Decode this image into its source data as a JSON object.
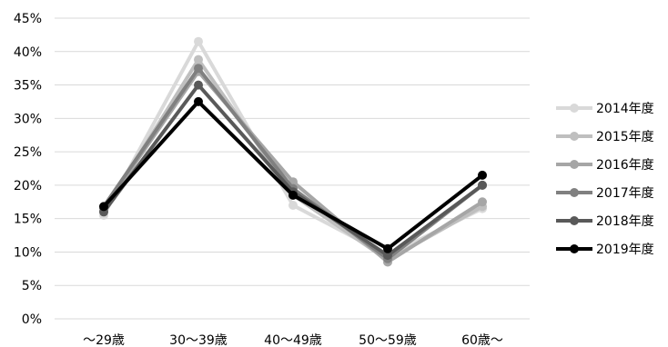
{
  "chart_data": {
    "type": "line",
    "title": "",
    "xlabel": "",
    "ylabel": "",
    "categories": [
      "～29歳",
      "30～39歳",
      "40～49歳",
      "50～59歳",
      "60歳～"
    ],
    "y_ticks": [
      "0%",
      "5%",
      "10%",
      "15%",
      "20%",
      "25%",
      "30%",
      "35%",
      "40%",
      "45%"
    ],
    "ylim": [
      0,
      45
    ],
    "y_unit": "%",
    "grid": "horizontal",
    "legend_position": "right",
    "series": [
      {
        "name": "2014年度",
        "color": "#d9d9d9",
        "values": [
          15.5,
          41.5,
          17.0,
          9.5,
          16.5
        ]
      },
      {
        "name": "2015年度",
        "color": "#bfbfbf",
        "values": [
          16.0,
          38.8,
          18.5,
          8.8,
          16.8
        ]
      },
      {
        "name": "2016年度",
        "color": "#a6a6a6",
        "values": [
          16.5,
          37.0,
          20.5,
          8.5,
          17.5
        ]
      },
      {
        "name": "2017年度",
        "color": "#808080",
        "values": [
          16.8,
          37.5,
          19.5,
          9.0,
          20.0
        ]
      },
      {
        "name": "2018年度",
        "color": "#595959",
        "values": [
          16.0,
          35.0,
          19.0,
          9.5,
          20.0
        ]
      },
      {
        "name": "2019年度",
        "color": "#000000",
        "values": [
          16.8,
          32.5,
          18.5,
          10.5,
          21.5
        ]
      }
    ]
  }
}
